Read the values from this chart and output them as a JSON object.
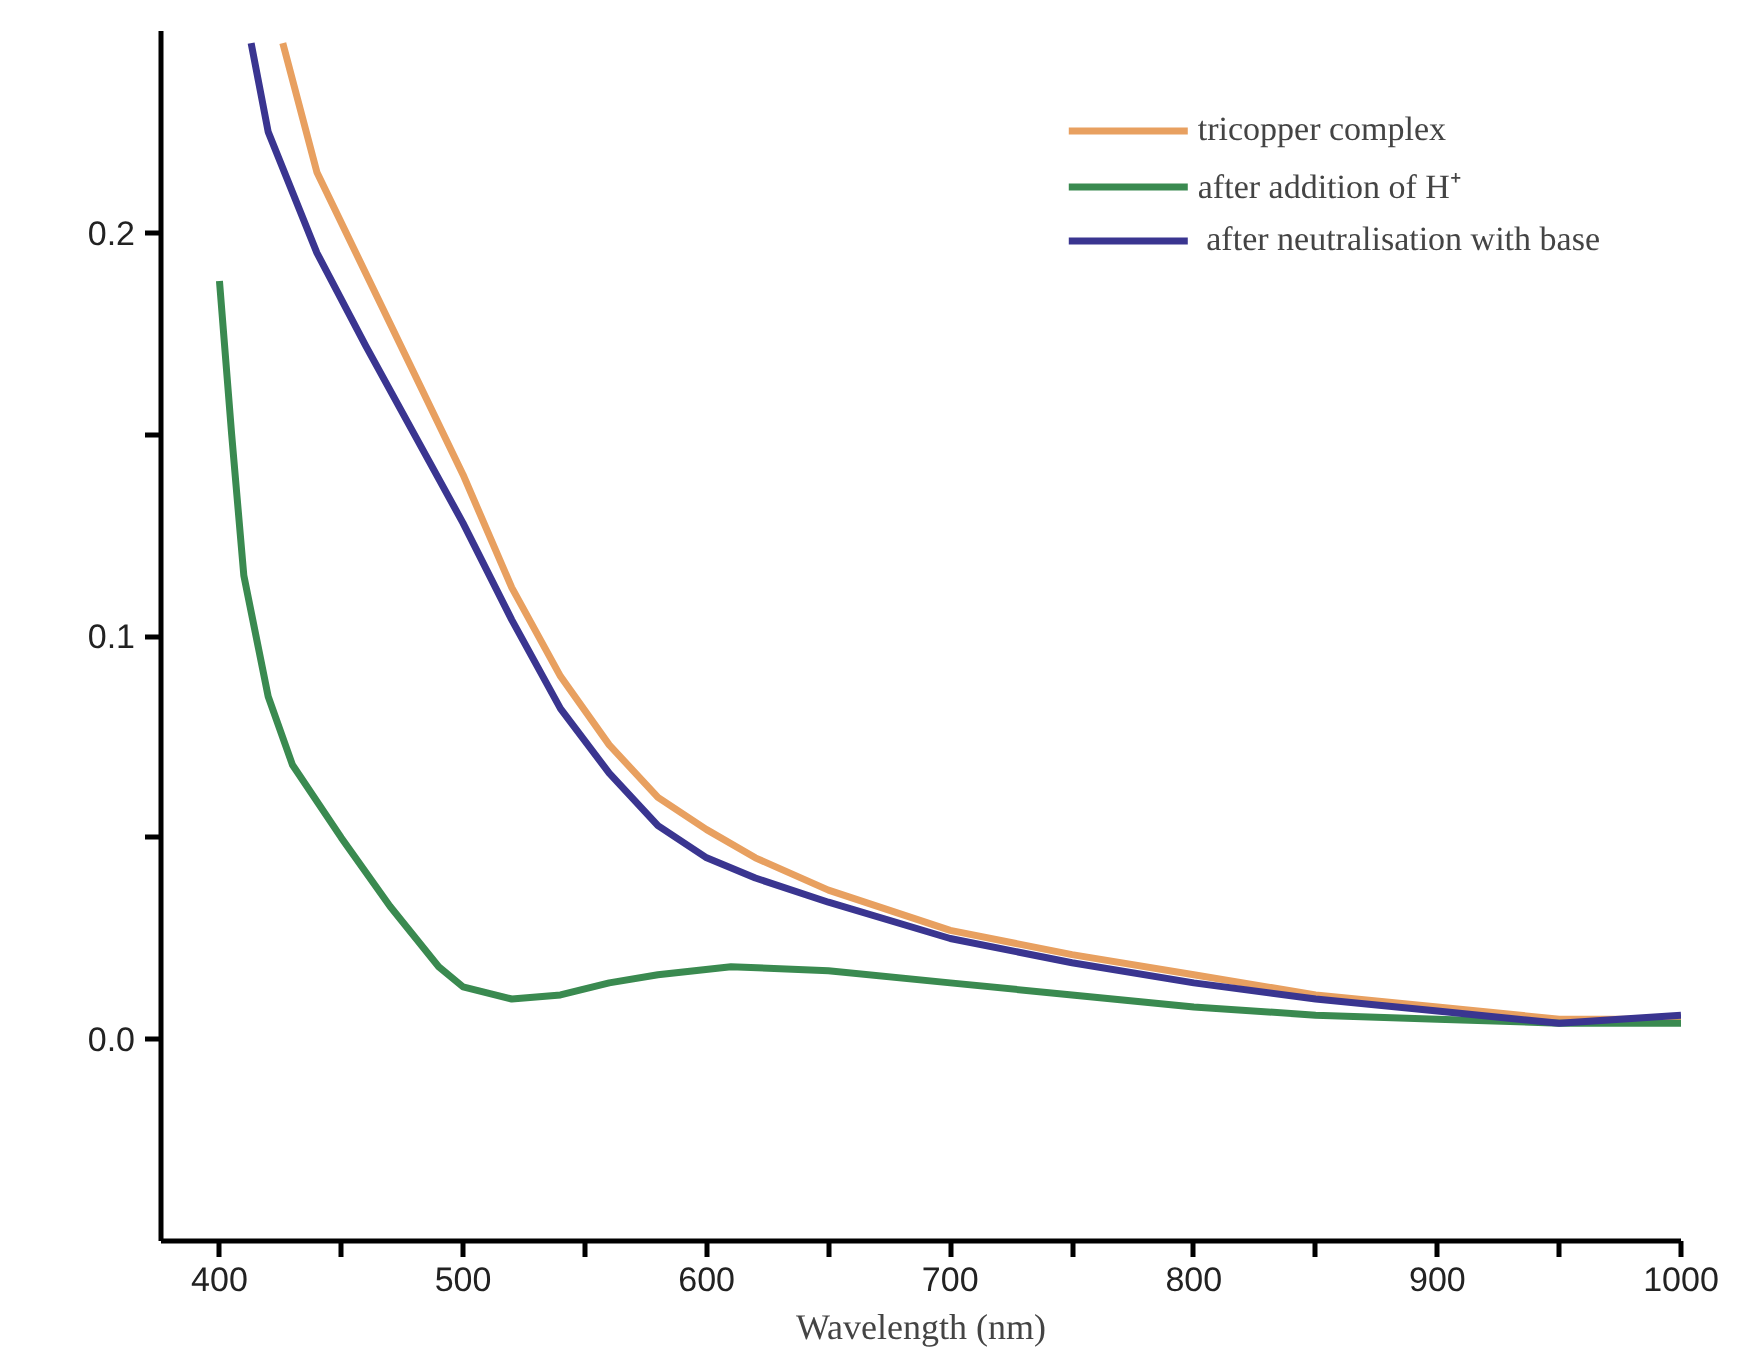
{
  "chart_data": {
    "type": "line",
    "xlabel": "Wavelength (nm)",
    "xlim": [
      376,
      1000
    ],
    "ylim": [
      -0.05,
      0.25
    ],
    "xticks": [
      400,
      {
        "value": 450,
        "label": null
      },
      500,
      {
        "value": 550,
        "label": null
      },
      600,
      {
        "value": 650,
        "label": null
      },
      700,
      {
        "value": 750,
        "label": null
      },
      800,
      {
        "value": 850,
        "label": null
      },
      900,
      {
        "value": 950,
        "label": null
      },
      1000
    ],
    "yticks": [
      {
        "value": 0,
        "label": "0.0"
      },
      {
        "value": 0.05,
        "label": null
      },
      0.1,
      {
        "value": 0.15,
        "label": null
      },
      0.2
    ],
    "grid": false,
    "legend": "top right",
    "line_style": "solid",
    "series": [
      {
        "name": "tricopper complex",
        "color": "#e8a060",
        "x": [
          426,
          440,
          460,
          480,
          500,
          520,
          540,
          560,
          580,
          600,
          620,
          650,
          700,
          750,
          800,
          850,
          900,
          950,
          1000
        ],
        "values": [
          0.247,
          0.215,
          0.19,
          0.165,
          0.14,
          0.112,
          0.09,
          0.073,
          0.06,
          0.052,
          0.045,
          0.037,
          0.027,
          0.021,
          0.016,
          0.011,
          0.008,
          0.005,
          0.005
        ]
      },
      {
        "name": "after addition of H⁺",
        "color": "#3a8a50",
        "x": [
          400,
          405,
          410,
          420,
          430,
          450,
          470,
          490,
          500,
          520,
          540,
          560,
          580,
          610,
          650,
          700,
          750,
          800,
          850,
          900,
          950,
          1000
        ],
        "values": [
          0.188,
          0.15,
          0.115,
          0.085,
          0.068,
          0.05,
          0.033,
          0.018,
          0.013,
          0.01,
          0.011,
          0.014,
          0.016,
          0.018,
          0.017,
          0.014,
          0.011,
          0.008,
          0.006,
          0.005,
          0.004,
          0.004
        ]
      },
      {
        "name": " after neutralisation with base",
        "color": "#3a3590",
        "x": [
          413,
          420,
          440,
          460,
          480,
          500,
          520,
          540,
          560,
          580,
          600,
          620,
          650,
          700,
          750,
          800,
          850,
          900,
          950,
          1000
        ],
        "values": [
          0.247,
          0.225,
          0.195,
          0.172,
          0.15,
          0.128,
          0.104,
          0.082,
          0.066,
          0.053,
          0.045,
          0.04,
          0.034,
          0.025,
          0.019,
          0.014,
          0.01,
          0.007,
          0.004,
          0.006
        ]
      }
    ]
  }
}
